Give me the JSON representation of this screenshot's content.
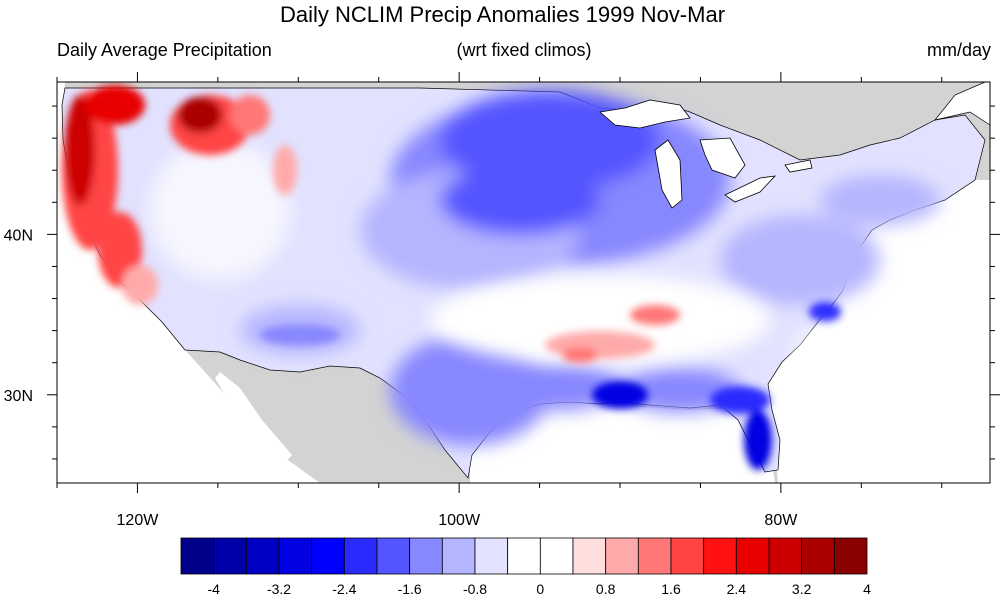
{
  "title": "Daily NCLIM Precip Anomalies 1999 Nov-Mar",
  "subtitle_left": "Daily Average Precipitation",
  "subtitle_center": "(wrt fixed climos)",
  "subtitle_right": "mm/day",
  "map": {
    "projection": "cylindrical equidistant",
    "lon_range": [
      -125,
      -67
    ],
    "lat_range": [
      24.5,
      49.5
    ],
    "lon_ticks": [
      {
        "value": -120,
        "label": "120W"
      },
      {
        "value": -100,
        "label": "100W"
      },
      {
        "value": -80,
        "label": "80W"
      }
    ],
    "lat_ticks": [
      {
        "value": 40,
        "label": "40N"
      },
      {
        "value": 30,
        "label": "30N"
      }
    ],
    "land_outside_color": "#d3d3d3",
    "water_color": "#ffffff"
  },
  "colorbar": {
    "labels": [
      "-4",
      "-3.2",
      "-2.4",
      "-1.6",
      "-0.8",
      "0",
      "0.8",
      "1.6",
      "2.4",
      "3.2",
      "4"
    ],
    "colors": [
      "#00008b",
      "#0000a8",
      "#0000c5",
      "#0000e2",
      "#0000ff",
      "#2a2aff",
      "#5555ff",
      "#8787ff",
      "#b5b5ff",
      "#e2e2ff",
      "#ffffff",
      "#ffffff",
      "#ffdede",
      "#ffaaaa",
      "#ff7777",
      "#ff4444",
      "#ff1111",
      "#e80000",
      "#cc0000",
      "#aa0000",
      "#8b0000"
    ]
  }
}
